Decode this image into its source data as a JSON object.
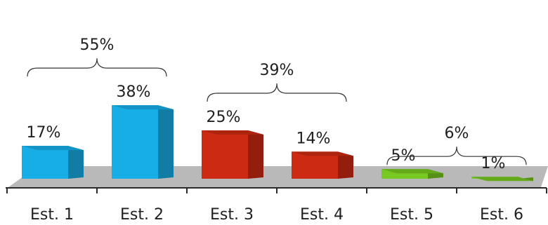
{
  "chart_data": {
    "type": "bar",
    "categories": [
      "Est. 1",
      "Est. 2",
      "Est. 3",
      "Est. 4",
      "Est. 5",
      "Est. 6"
    ],
    "values": [
      17,
      38,
      25,
      14,
      5,
      1
    ],
    "value_labels": [
      "17%",
      "38%",
      "25%",
      "14%",
      "5%",
      "1%"
    ],
    "ylim": [
      0,
      40
    ],
    "grid": false,
    "legend": "none",
    "colors": [
      "#17aee8",
      "#17aee8",
      "#cc2a12",
      "#cc2a12",
      "#77c820",
      "#77c820"
    ],
    "groups": [
      {
        "label": "55%",
        "categories": [
          "Est. 1",
          "Est. 2"
        ],
        "color": "#17aee8"
      },
      {
        "label": "39%",
        "categories": [
          "Est. 3",
          "Est. 4"
        ],
        "color": "#cc2a12"
      },
      {
        "label": "6%",
        "categories": [
          "Est. 5",
          "Est. 6"
        ],
        "color": "#77c820"
      }
    ]
  }
}
